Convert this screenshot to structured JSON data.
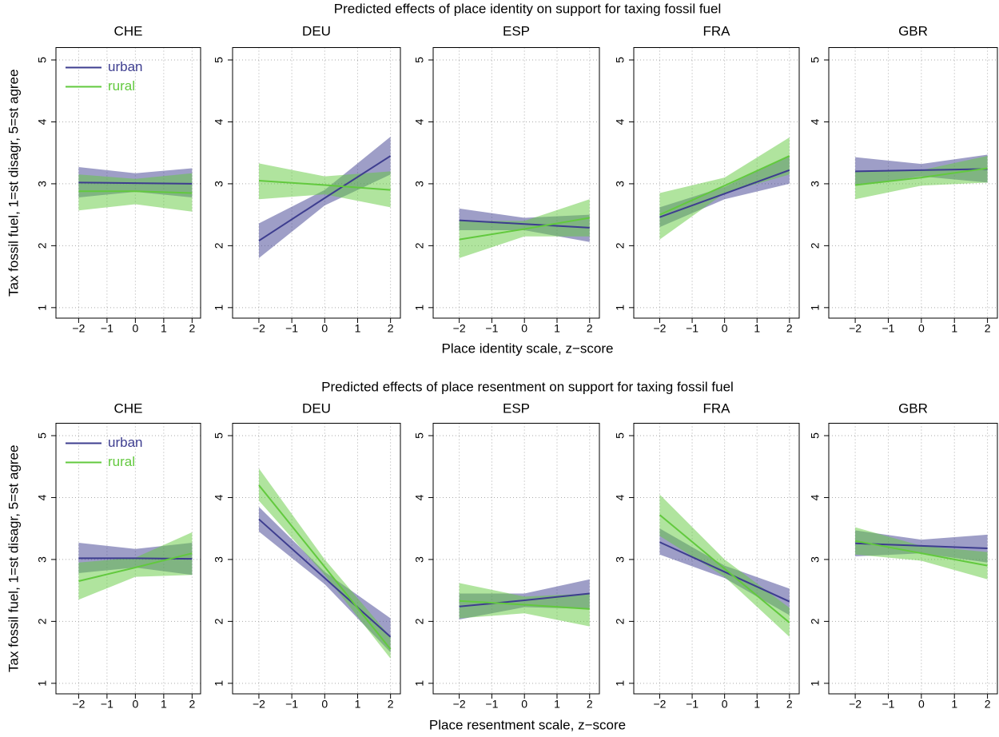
{
  "chart_data": [
    {
      "type": "line",
      "title": "Predicted effects of place identity on support for taxing fossil fuel",
      "xlabel": "Place identity scale, z−score",
      "ylabel": "Tax fossil fuel, 1=st disagr, 5=st agree",
      "series": [
        {
          "name": "urban",
          "color": "#3d3d8f"
        },
        {
          "name": "rural",
          "color": "#62c93e"
        }
      ],
      "legend": "top-left",
      "grid": true,
      "x": [
        -2,
        0,
        2
      ],
      "xlim": [
        -2.8,
        2.3
      ],
      "ylim": [
        0.83,
        5.2
      ],
      "xticks": [
        {
          "value": -2,
          "label": "−2"
        },
        {
          "value": -1,
          "label": "−1"
        },
        0,
        1,
        2
      ],
      "yticks": [
        1,
        2,
        3,
        4,
        5
      ],
      "panels": [
        {
          "title": "CHE",
          "series": [
            {
              "values": [
                3.02,
                3.01,
                3.0
              ],
              "lower": [
                2.78,
                2.87,
                2.78
              ],
              "upper": [
                3.27,
                3.17,
                3.25
              ]
            },
            {
              "values": [
                2.88,
                2.88,
                2.85
              ],
              "lower": [
                2.57,
                2.67,
                2.55
              ],
              "upper": [
                3.15,
                3.08,
                3.17
              ]
            }
          ]
        },
        {
          "title": "DEU",
          "series": [
            {
              "values": [
                2.08,
                2.77,
                3.45
              ],
              "lower": [
                1.8,
                2.65,
                3.15
              ],
              "upper": [
                2.36,
                2.9,
                3.76
              ]
            },
            {
              "values": [
                3.05,
                2.98,
                2.9
              ],
              "lower": [
                2.75,
                2.83,
                2.62
              ],
              "upper": [
                3.33,
                3.12,
                3.2
              ]
            }
          ]
        },
        {
          "title": "ESP",
          "series": [
            {
              "values": [
                2.41,
                2.35,
                2.29
              ],
              "lower": [
                2.25,
                2.25,
                2.06
              ],
              "upper": [
                2.6,
                2.45,
                2.5
              ]
            },
            {
              "values": [
                2.1,
                2.27,
                2.45
              ],
              "lower": [
                1.8,
                2.15,
                2.15
              ],
              "upper": [
                2.4,
                2.4,
                2.75
              ]
            }
          ]
        },
        {
          "title": "FRA",
          "series": [
            {
              "values": [
                2.46,
                2.84,
                3.22
              ],
              "lower": [
                2.3,
                2.75,
                3.0
              ],
              "upper": [
                2.62,
                2.95,
                3.45
              ]
            },
            {
              "values": [
                2.5,
                2.97,
                3.45
              ],
              "lower": [
                2.1,
                2.85,
                3.15
              ],
              "upper": [
                2.85,
                3.1,
                3.75
              ]
            }
          ]
        },
        {
          "title": "GBR",
          "series": [
            {
              "values": [
                3.2,
                3.22,
                3.24
              ],
              "lower": [
                2.97,
                3.12,
                3.02
              ],
              "upper": [
                3.43,
                3.32,
                3.47
              ]
            },
            {
              "values": [
                2.98,
                3.1,
                3.25
              ],
              "lower": [
                2.75,
                2.97,
                3.02
              ],
              "upper": [
                3.2,
                3.22,
                3.45
              ]
            }
          ]
        }
      ]
    },
    {
      "type": "line",
      "title": "Predicted effects of place resentment on support for taxing fossil fuel",
      "xlabel": "Place resentment scale, z−score",
      "ylabel": "Tax fossil fuel, 1=st disagr, 5=st agree",
      "series": [
        {
          "name": "urban",
          "color": "#3d3d8f"
        },
        {
          "name": "rural",
          "color": "#62c93e"
        }
      ],
      "legend": "top-left",
      "grid": true,
      "x": [
        -2,
        0,
        2
      ],
      "xlim": [
        -2.8,
        2.3
      ],
      "ylim": [
        0.83,
        5.2
      ],
      "xticks": [
        {
          "value": -2,
          "label": "−2"
        },
        {
          "value": -1,
          "label": "−1"
        },
        0,
        1,
        2
      ],
      "yticks": [
        1,
        2,
        3,
        4,
        5
      ],
      "panels": [
        {
          "title": "CHE",
          "series": [
            {
              "values": [
                3.02,
                3.02,
                3.01
              ],
              "lower": [
                2.78,
                2.87,
                2.75
              ],
              "upper": [
                3.27,
                3.17,
                3.27
              ]
            },
            {
              "values": [
                2.65,
                2.87,
                3.1
              ],
              "lower": [
                2.35,
                2.72,
                2.75
              ],
              "upper": [
                2.95,
                3.03,
                3.44
              ]
            }
          ]
        },
        {
          "title": "DEU",
          "series": [
            {
              "values": [
                3.65,
                2.7,
                1.75
              ],
              "lower": [
                3.45,
                2.6,
                1.5
              ],
              "upper": [
                3.85,
                2.8,
                2.05
              ]
            },
            {
              "values": [
                4.2,
                2.88,
                1.55
              ],
              "lower": [
                3.95,
                2.75,
                1.4
              ],
              "upper": [
                4.47,
                3.0,
                1.75
              ]
            }
          ]
        },
        {
          "title": "ESP",
          "series": [
            {
              "values": [
                2.24,
                2.34,
                2.45
              ],
              "lower": [
                2.03,
                2.23,
                2.2
              ],
              "upper": [
                2.45,
                2.45,
                2.68
              ]
            },
            {
              "values": [
                2.33,
                2.27,
                2.2
              ],
              "lower": [
                2.05,
                2.13,
                1.92
              ],
              "upper": [
                2.62,
                2.4,
                2.45
              ]
            }
          ]
        },
        {
          "title": "FRA",
          "series": [
            {
              "values": [
                3.28,
                2.8,
                2.32
              ],
              "lower": [
                3.08,
                2.7,
                2.1
              ],
              "upper": [
                3.5,
                2.9,
                2.53
              ]
            },
            {
              "values": [
                3.72,
                2.85,
                1.98
              ],
              "lower": [
                3.38,
                2.72,
                1.75
              ],
              "upper": [
                4.05,
                3.0,
                2.22
              ]
            }
          ]
        },
        {
          "title": "GBR",
          "series": [
            {
              "values": [
                3.26,
                3.22,
                3.18
              ],
              "lower": [
                3.05,
                3.1,
                2.95
              ],
              "upper": [
                3.47,
                3.32,
                3.4
              ]
            },
            {
              "values": [
                3.3,
                3.1,
                2.9
              ],
              "lower": [
                3.08,
                2.98,
                2.68
              ],
              "upper": [
                3.52,
                3.22,
                3.12
              ]
            }
          ]
        }
      ]
    }
  ]
}
